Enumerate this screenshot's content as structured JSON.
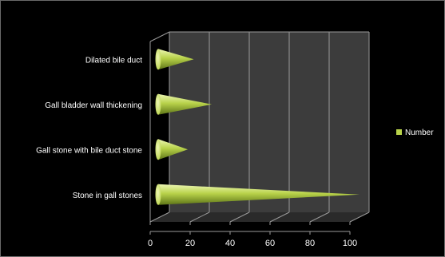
{
  "chart_data": {
    "type": "bar",
    "style": "3d-cone",
    "orientation": "horizontal",
    "categories": [
      "Stone in gall stones",
      "Gall stone with bile duct stone",
      "Gall bladder wall thickening",
      "Dilated bile duct"
    ],
    "series": [
      {
        "name": "Number",
        "values": [
          100,
          14,
          26,
          17
        ]
      }
    ],
    "xlim": [
      0,
      100
    ],
    "xticks": [
      0,
      20,
      40,
      60,
      80,
      100
    ],
    "grid": true,
    "legend": "right",
    "colors": {
      "background": "#000000",
      "plot_wall": "#3c3c3c",
      "plot_floor": "#2a2a2a",
      "grid": "#9a9a9a",
      "cone_light": "#eef7b5",
      "cone_mid": "#b8d24a",
      "cone_dark": "#5d7417",
      "text": "#ffffff"
    }
  }
}
